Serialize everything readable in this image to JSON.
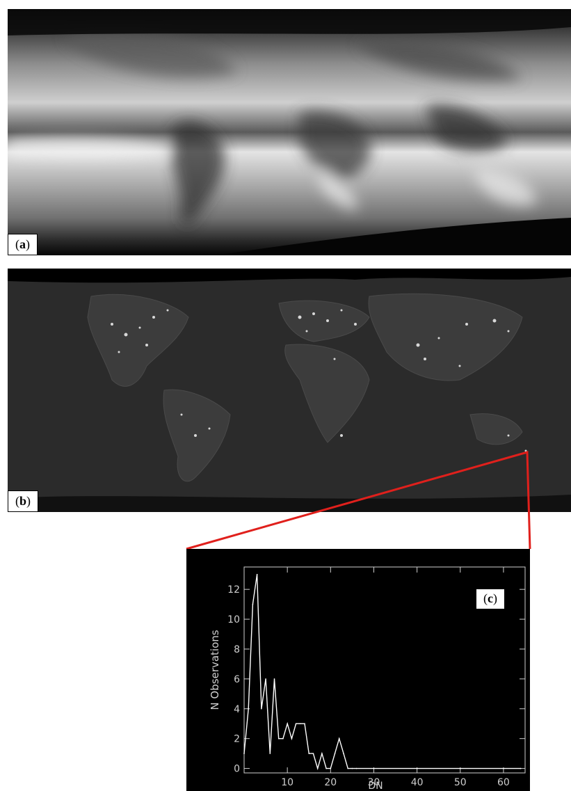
{
  "panels": {
    "a": {
      "label_open": "(",
      "label_letter": "a",
      "label_close": ")"
    },
    "b": {
      "label_open": "(",
      "label_letter": "b",
      "label_close": ")"
    },
    "c": {
      "label_open": "(",
      "label_letter": "c",
      "label_close": ")"
    }
  },
  "colors": {
    "callout": "#e0201c",
    "plot_line": "#ffffff",
    "plot_background": "#000000"
  },
  "chart_data": {
    "type": "line",
    "title": "",
    "xlabel": "DN",
    "ylabel": "N Observations",
    "xlim": [
      0,
      65
    ],
    "ylim": [
      -0.3,
      13.5
    ],
    "xticks": [
      10,
      20,
      30,
      40,
      50,
      60
    ],
    "yticks": [
      0,
      2,
      4,
      6,
      8,
      10,
      12
    ],
    "grid": false,
    "series": [
      {
        "x": [
          0,
          1,
          2,
          3,
          4,
          5,
          6,
          7,
          8,
          9,
          10,
          11,
          12,
          13,
          14,
          15,
          16,
          17,
          18,
          19,
          20,
          21,
          22,
          23,
          24,
          25,
          26,
          30,
          40,
          50,
          60,
          64
        ],
        "y": [
          1,
          4,
          11,
          13,
          4,
          6,
          1,
          6,
          2,
          2,
          3,
          2,
          3,
          3,
          3,
          1,
          1,
          0,
          1,
          0,
          0,
          1,
          2,
          1,
          0,
          0,
          0,
          0,
          0,
          0,
          0,
          0
        ]
      }
    ]
  }
}
